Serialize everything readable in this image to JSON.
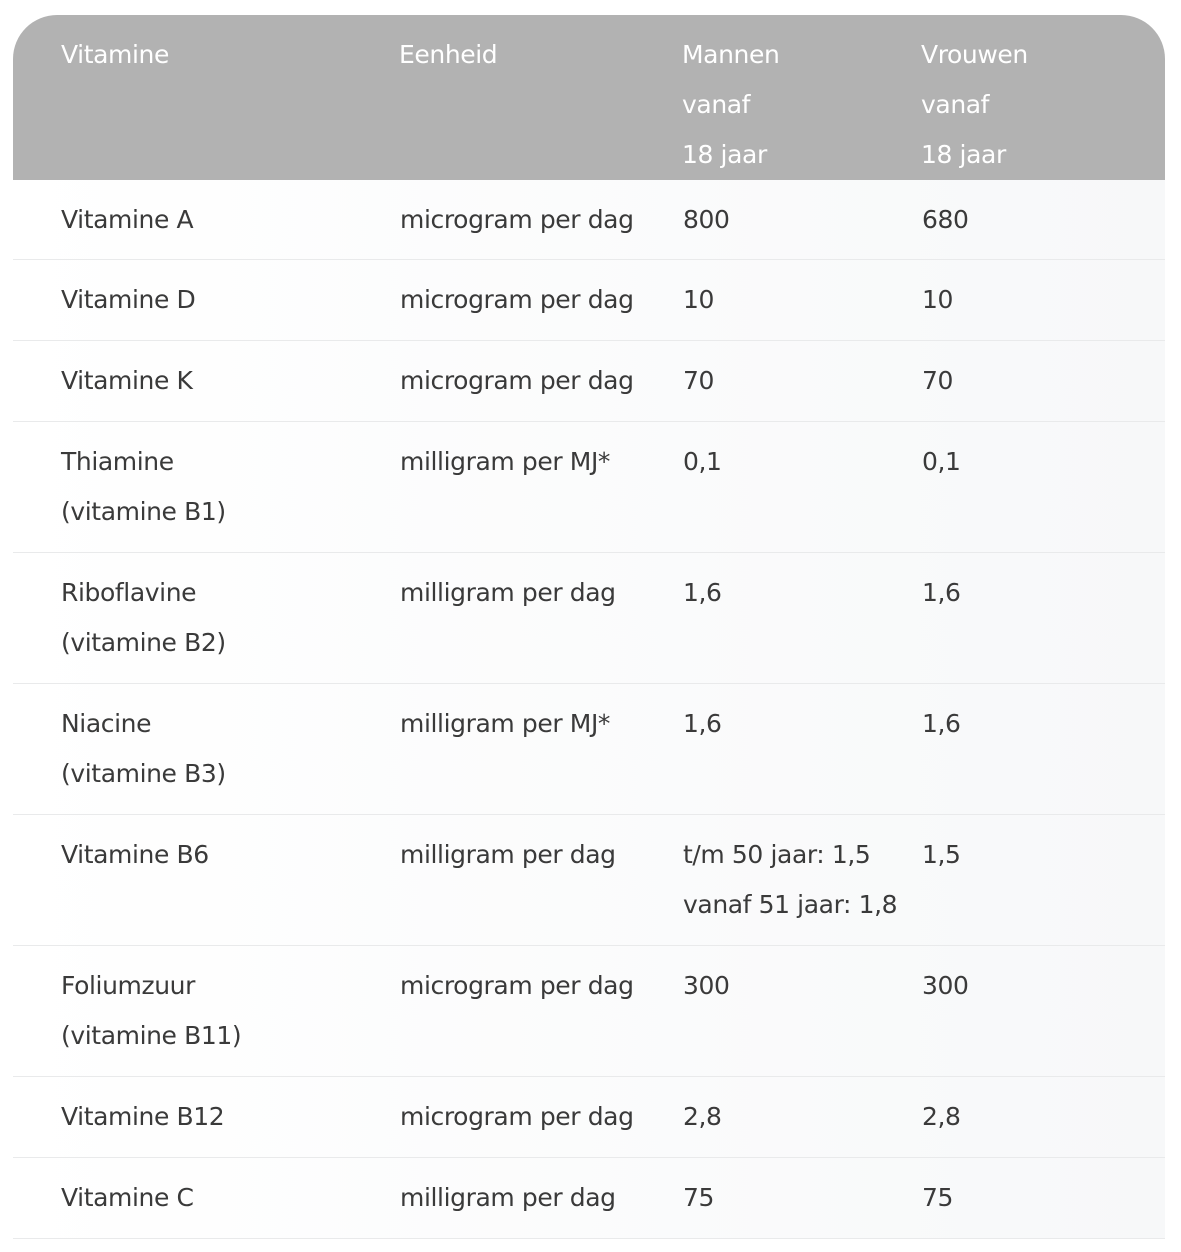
{
  "table": {
    "headers": [
      {
        "lines": [
          "Vitamine"
        ]
      },
      {
        "lines": [
          "Eenheid"
        ]
      },
      {
        "lines": [
          "Mannen",
          "vanaf",
          "18 jaar"
        ]
      },
      {
        "lines": [
          "Vrouwen",
          "vanaf",
          "18 jaar"
        ]
      }
    ],
    "rows": [
      {
        "vitamine": [
          "Vitamine A"
        ],
        "eenheid": "microgram per dag",
        "mannen": [
          "800"
        ],
        "vrouwen": "680"
      },
      {
        "vitamine": [
          "Vitamine D"
        ],
        "eenheid": "microgram per dag",
        "mannen": [
          "10"
        ],
        "vrouwen": "10"
      },
      {
        "vitamine": [
          "Vitamine K"
        ],
        "eenheid": "microgram per dag",
        "mannen": [
          "70"
        ],
        "vrouwen": "70"
      },
      {
        "vitamine": [
          "Thiamine",
          "(vitamine B1)"
        ],
        "eenheid": "milligram per MJ*",
        "mannen": [
          "0,1"
        ],
        "vrouwen": "0,1"
      },
      {
        "vitamine": [
          "Riboflavine",
          "(vitamine B2)"
        ],
        "eenheid": "milligram per dag",
        "mannen": [
          "1,6"
        ],
        "vrouwen": "1,6"
      },
      {
        "vitamine": [
          "Niacine",
          "(vitamine B3)"
        ],
        "eenheid": "milligram per MJ*",
        "mannen": [
          "1,6"
        ],
        "vrouwen": "1,6"
      },
      {
        "vitamine": [
          "Vitamine B6"
        ],
        "eenheid": "milligram per dag",
        "mannen": [
          "t/m 50 jaar: 1,5",
          "vanaf 51 jaar: 1,8"
        ],
        "vrouwen": "1,5"
      },
      {
        "vitamine": [
          "Foliumzuur",
          "(vitamine B11)"
        ],
        "eenheid": "microgram per dag",
        "mannen": [
          "300"
        ],
        "vrouwen": "300"
      },
      {
        "vitamine": [
          "Vitamine B12"
        ],
        "eenheid": "microgram per dag",
        "mannen": [
          "2,8"
        ],
        "vrouwen": "2,8"
      },
      {
        "vitamine": [
          "Vitamine C"
        ],
        "eenheid": "milligram per dag",
        "mannen": [
          "75"
        ],
        "vrouwen": "75"
      }
    ]
  },
  "colors": {
    "header_bg": "#b2b2b2",
    "header_text": "#ffffff",
    "body_text": "#3a3a3a",
    "row_divider": "#e9eaeb"
  }
}
